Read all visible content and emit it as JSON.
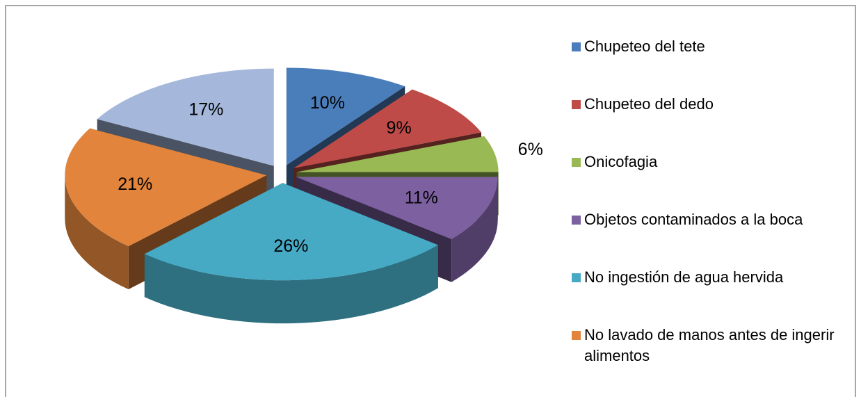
{
  "chart_data": {
    "type": "pie3d",
    "categories": [
      "Chupeteo del tete",
      "Chupeteo del dedo",
      "Onicofagia",
      "Objetos contaminados a la boca",
      "No ingestión de agua hervida",
      "No lavado de manos antes de ingerir alimentos",
      null
    ],
    "values": [
      10,
      9,
      6,
      11,
      26,
      21,
      17
    ],
    "value_labels": [
      "10%",
      "9%",
      "6%",
      "11%",
      "26%",
      "21%",
      "17%"
    ],
    "colors": [
      "#4a7ebb",
      "#be4b48",
      "#98b954",
      "#7d60a0",
      "#46aac5",
      "#e2843c",
      "#a5b8db"
    ],
    "legend": "right"
  }
}
